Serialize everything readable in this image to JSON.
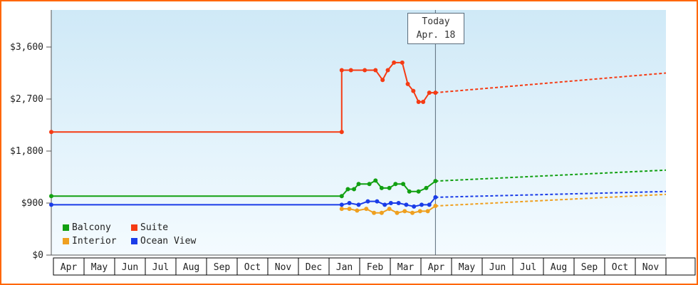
{
  "chart_data": {
    "type": "line",
    "title": "",
    "today_label": {
      "line1": "Today",
      "line2": "Apr. 18"
    },
    "today_month": 12.5,
    "x_months": [
      "Apr",
      "May",
      "Jun",
      "Jul",
      "Aug",
      "Sep",
      "Oct",
      "Nov",
      "Dec",
      "Jan",
      "Feb",
      "Mar",
      "Apr",
      "May",
      "Jun",
      "Jul",
      "Aug",
      "Sep",
      "Oct",
      "Nov"
    ],
    "y_ticks": [
      {
        "label": "$3,600",
        "value": 3600
      },
      {
        "label": "$2,700",
        "value": 2700
      },
      {
        "label": "$1,800",
        "value": 1800
      },
      {
        "label": "$900",
        "value": 900
      },
      {
        "label": "$0",
        "value": 0
      }
    ],
    "ylim": [
      0,
      4240
    ],
    "grid": false,
    "legend_position": "bottom-left",
    "colors": {
      "plot_bg_top": "#cfe9f7",
      "plot_bg_bottom": "#f4fbff",
      "axis": "#555555",
      "frame_border": "#ff6600",
      "today_line": "#5a6b7a"
    },
    "series": [
      {
        "name": "Balcony",
        "color": "#12a012",
        "points": [
          [
            0,
            1020
          ],
          [
            9.45,
            1020
          ],
          [
            9.65,
            1140
          ],
          [
            9.85,
            1140
          ],
          [
            10.0,
            1230
          ],
          [
            10.35,
            1230
          ],
          [
            10.55,
            1290
          ],
          [
            10.75,
            1160
          ],
          [
            11.0,
            1160
          ],
          [
            11.2,
            1230
          ],
          [
            11.45,
            1230
          ],
          [
            11.65,
            1100
          ],
          [
            11.95,
            1100
          ],
          [
            12.2,
            1160
          ],
          [
            12.5,
            1280
          ]
        ],
        "projection": [
          [
            12.5,
            1280
          ],
          [
            20,
            1470
          ]
        ]
      },
      {
        "name": "Suite",
        "color": "#f53b14",
        "points": [
          [
            0,
            2130
          ],
          [
            9.45,
            2130
          ],
          [
            9.45,
            3200
          ],
          [
            9.75,
            3200
          ],
          [
            10.2,
            3200
          ],
          [
            10.55,
            3200
          ],
          [
            10.78,
            3030
          ],
          [
            10.95,
            3200
          ],
          [
            11.15,
            3330
          ],
          [
            11.42,
            3330
          ],
          [
            11.6,
            2960
          ],
          [
            11.78,
            2840
          ],
          [
            11.95,
            2650
          ],
          [
            12.1,
            2650
          ],
          [
            12.3,
            2810
          ],
          [
            12.5,
            2810
          ]
        ],
        "projection": [
          [
            12.5,
            2810
          ],
          [
            20,
            3150
          ]
        ]
      },
      {
        "name": "Interior",
        "color": "#efa020",
        "points": [
          [
            9.45,
            800
          ],
          [
            9.7,
            800
          ],
          [
            9.95,
            770
          ],
          [
            10.25,
            800
          ],
          [
            10.5,
            730
          ],
          [
            10.75,
            730
          ],
          [
            11.0,
            800
          ],
          [
            11.25,
            730
          ],
          [
            11.5,
            760
          ],
          [
            11.75,
            730
          ],
          [
            12.0,
            760
          ],
          [
            12.25,
            760
          ],
          [
            12.5,
            850
          ]
        ],
        "projection": [
          [
            12.5,
            850
          ],
          [
            20,
            1050
          ]
        ]
      },
      {
        "name": "Ocean View",
        "color": "#1a3ce8",
        "points": [
          [
            0,
            870
          ],
          [
            9.45,
            870
          ],
          [
            9.7,
            900
          ],
          [
            10.0,
            870
          ],
          [
            10.3,
            930
          ],
          [
            10.6,
            930
          ],
          [
            10.85,
            870
          ],
          [
            11.05,
            900
          ],
          [
            11.3,
            900
          ],
          [
            11.55,
            870
          ],
          [
            11.8,
            840
          ],
          [
            12.05,
            870
          ],
          [
            12.3,
            870
          ],
          [
            12.5,
            1000
          ]
        ],
        "projection": [
          [
            12.5,
            1000
          ],
          [
            20,
            1100
          ]
        ]
      }
    ]
  }
}
